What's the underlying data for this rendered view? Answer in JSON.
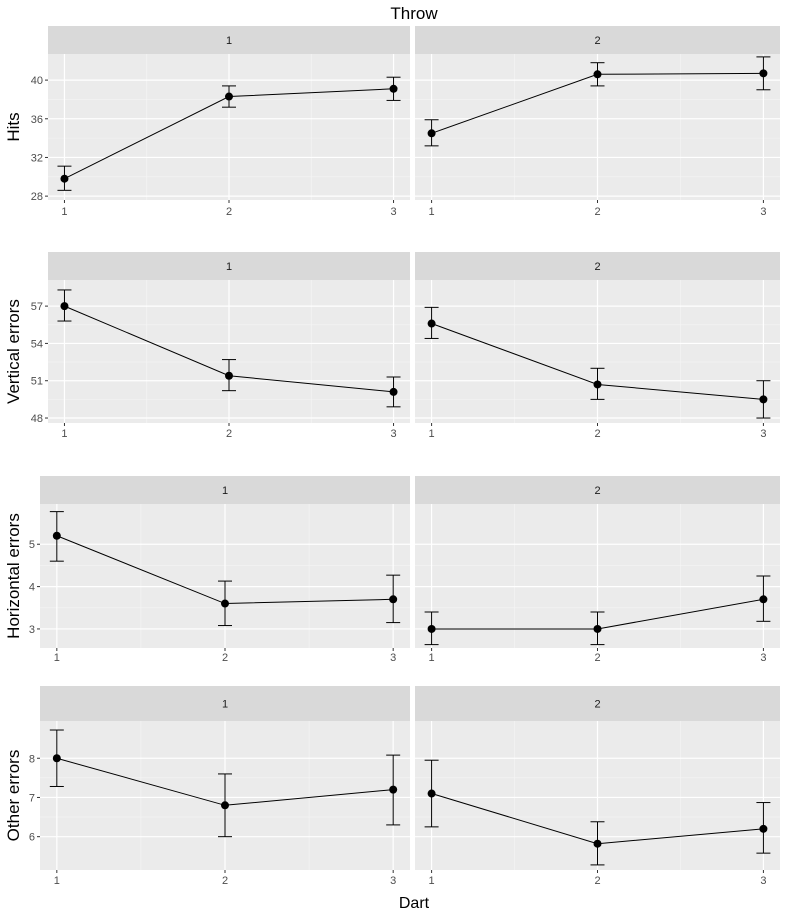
{
  "top_title": "Throw",
  "x_axis_title": "Dart",
  "chart_data": [
    {
      "type": "line",
      "ylabel": "Hits",
      "x_ticks": [
        "1",
        "2",
        "3"
      ],
      "y_ticks": [
        "28",
        "32",
        "36",
        "40"
      ],
      "ylim": [
        27.6,
        42.7
      ],
      "facets": [
        {
          "label": "1",
          "x": [
            1,
            2,
            3
          ],
          "y": [
            29.8,
            38.3,
            39.1
          ],
          "lower": [
            28.6,
            37.2,
            37.9
          ],
          "upper": [
            31.1,
            39.4,
            40.3
          ]
        },
        {
          "label": "2",
          "x": [
            1,
            2,
            3
          ],
          "y": [
            34.5,
            40.6,
            40.7
          ],
          "lower": [
            33.2,
            39.4,
            39.0
          ],
          "upper": [
            35.9,
            41.8,
            42.4
          ]
        }
      ]
    },
    {
      "type": "line",
      "ylabel": "Vertical errors",
      "x_ticks": [
        "1",
        "2",
        "3"
      ],
      "y_ticks": [
        "48",
        "51",
        "54",
        "57"
      ],
      "ylim": [
        47.6,
        59.1
      ],
      "facets": [
        {
          "label": "1",
          "x": [
            1,
            2,
            3
          ],
          "y": [
            57.0,
            51.4,
            50.1
          ],
          "lower": [
            55.8,
            50.2,
            48.9
          ],
          "upper": [
            58.3,
            52.7,
            51.3
          ]
        },
        {
          "label": "2",
          "x": [
            1,
            2,
            3
          ],
          "y": [
            55.6,
            50.7,
            49.5
          ],
          "lower": [
            54.4,
            49.5,
            48.0
          ],
          "upper": [
            56.9,
            52.0,
            51.0
          ]
        }
      ]
    },
    {
      "type": "line",
      "ylabel": "Horizontal errors",
      "x_ticks": [
        "1",
        "2",
        "3"
      ],
      "y_ticks": [
        "3",
        "4",
        "5"
      ],
      "ylim": [
        2.55,
        5.95
      ],
      "facets": [
        {
          "label": "1",
          "x": [
            1,
            2,
            3
          ],
          "y": [
            5.2,
            3.6,
            3.7
          ],
          "lower": [
            4.6,
            3.08,
            3.15
          ],
          "upper": [
            5.77,
            4.13,
            4.27
          ]
        },
        {
          "label": "2",
          "x": [
            1,
            2,
            3
          ],
          "y": [
            3.0,
            3.0,
            3.7
          ],
          "lower": [
            2.63,
            2.63,
            3.18
          ],
          "upper": [
            3.4,
            3.4,
            4.25
          ]
        }
      ]
    },
    {
      "type": "line",
      "ylabel": "Other errors",
      "x_ticks": [
        "1",
        "2",
        "3"
      ],
      "y_ticks": [
        "6",
        "7",
        "8"
      ],
      "ylim": [
        5.15,
        8.95
      ],
      "facets": [
        {
          "label": "1",
          "x": [
            1,
            2,
            3
          ],
          "y": [
            8.0,
            6.8,
            7.2
          ],
          "lower": [
            7.28,
            6.0,
            6.3
          ],
          "upper": [
            8.72,
            7.6,
            8.08
          ]
        },
        {
          "label": "2",
          "x": [
            1,
            2,
            3
          ],
          "y": [
            7.1,
            5.82,
            6.2
          ],
          "lower": [
            6.25,
            5.28,
            5.58
          ],
          "upper": [
            7.95,
            6.38,
            6.87
          ]
        }
      ]
    }
  ]
}
